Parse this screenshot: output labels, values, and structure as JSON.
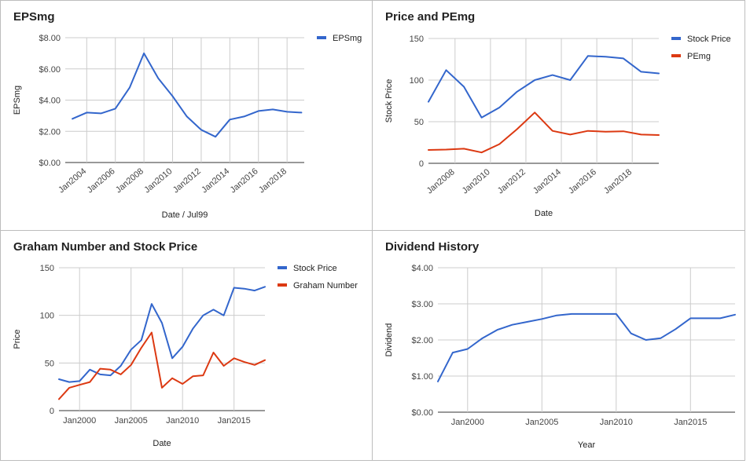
{
  "chart_data": [
    {
      "id": "eps",
      "type": "line",
      "title": "EPSmg",
      "xlabel": "Date / Jul99",
      "ylabel": "EPSmg",
      "xlim": [
        2002.5,
        2019.2
      ],
      "ylim": [
        0,
        8
      ],
      "yticks": [
        0,
        2,
        4,
        6,
        8
      ],
      "ytick_labels": [
        "$0.00",
        "$2.00",
        "$4.00",
        "$6.00",
        "$8.00"
      ],
      "xticks": [
        2004,
        2006,
        2008,
        2010,
        2012,
        2014,
        2016,
        2018
      ],
      "xtick_labels": [
        "Jan2004",
        "Jan2006",
        "Jan2008",
        "Jan2010",
        "Jan2012",
        "Jan2014",
        "Jan2016",
        "Jan2018"
      ],
      "rotate_xticks": true,
      "legend_position": "right",
      "series": [
        {
          "name": "EPSmg",
          "color": "#3366cc",
          "x": [
            2003,
            2004,
            2005,
            2006,
            2007,
            2008,
            2009,
            2010,
            2011,
            2012,
            2013,
            2014,
            2015,
            2016,
            2017,
            2018,
            2019
          ],
          "y": [
            2.8,
            3.2,
            3.15,
            3.45,
            4.8,
            7.0,
            5.4,
            4.25,
            2.95,
            2.1,
            1.65,
            2.75,
            2.95,
            3.3,
            3.4,
            3.25,
            3.2
          ]
        }
      ]
    },
    {
      "id": "price",
      "type": "line",
      "title": "Price and PEmg",
      "xlabel": "Date",
      "ylabel": "Stock Price",
      "xlim": [
        2006.5,
        2019.5
      ],
      "ylim": [
        0,
        150
      ],
      "yticks": [
        0,
        50,
        100,
        150
      ],
      "ytick_labels": [
        "0",
        "50",
        "100",
        "150"
      ],
      "xticks": [
        2008,
        2010,
        2012,
        2014,
        2016,
        2018
      ],
      "xtick_labels": [
        "Jan2008",
        "Jan2010",
        "Jan2012",
        "Jan2014",
        "Jan2016",
        "Jan2018"
      ],
      "rotate_xticks": true,
      "legend_position": "right",
      "series": [
        {
          "name": "Stock Price",
          "color": "#3366cc",
          "x": [
            2006.5,
            2007.5,
            2008.5,
            2009.5,
            2010.5,
            2011.5,
            2012.5,
            2013.5,
            2014.5,
            2015.5,
            2016.5,
            2017.5,
            2018.5,
            2019.5
          ],
          "y": [
            74,
            112,
            92,
            55,
            67,
            86,
            100,
            106,
            100,
            129,
            128,
            126,
            110,
            108
          ]
        },
        {
          "name": "PEmg",
          "color": "#dc3912",
          "x": [
            2006.5,
            2007.5,
            2008.5,
            2009.5,
            2010.5,
            2011.5,
            2012.5,
            2013.5,
            2014.5,
            2015.5,
            2016.5,
            2017.5,
            2018.5,
            2019.5
          ],
          "y": [
            16,
            16.5,
            17.5,
            13,
            23,
            41,
            61,
            39,
            34.5,
            39,
            38,
            38.5,
            34.5,
            34
          ]
        }
      ]
    },
    {
      "id": "graham",
      "type": "line",
      "title": "Graham Number and Stock Price",
      "xlabel": "Date",
      "ylabel": "Price",
      "xlim": [
        1998,
        2018
      ],
      "ylim": [
        0,
        150
      ],
      "yticks": [
        0,
        50,
        100,
        150
      ],
      "ytick_labels": [
        "0",
        "50",
        "100",
        "150"
      ],
      "xticks": [
        2000,
        2005,
        2010,
        2015
      ],
      "xtick_labels": [
        "Jan2000",
        "Jan2005",
        "Jan2010",
        "Jan2015"
      ],
      "rotate_xticks": false,
      "vgrid": true,
      "legend_position": "right",
      "series": [
        {
          "name": "Stock Price",
          "color": "#3366cc",
          "x": [
            1998,
            1999,
            2000,
            2001,
            2002,
            2003,
            2004,
            2005,
            2006,
            2007,
            2008,
            2009,
            2010,
            2011,
            2012,
            2013,
            2014,
            2015,
            2016,
            2017,
            2018
          ],
          "y": [
            33,
            30,
            31,
            43,
            38,
            37,
            47,
            64,
            74,
            112,
            92,
            55,
            67,
            86,
            100,
            106,
            100,
            129,
            128,
            126,
            130
          ]
        },
        {
          "name": "Graham Number",
          "color": "#dc3912",
          "x": [
            1998,
            1999,
            2000,
            2001,
            2002,
            2003,
            2004,
            2005,
            2006,
            2007,
            2008,
            2009,
            2010,
            2011,
            2012,
            2013,
            2014,
            2015,
            2016,
            2017,
            2018
          ],
          "y": [
            12,
            24,
            27,
            30,
            44,
            43,
            38,
            48,
            66,
            82,
            24,
            34,
            28,
            36,
            37,
            61,
            47,
            55,
            51,
            48,
            53
          ]
        }
      ]
    },
    {
      "id": "dividend",
      "type": "line",
      "title": "Dividend History",
      "xlabel": "Year",
      "ylabel": "Dividend",
      "xlim": [
        1998,
        2018
      ],
      "ylim": [
        0,
        4
      ],
      "yticks": [
        0,
        1,
        2,
        3,
        4
      ],
      "ytick_labels": [
        "$0.00",
        "$1.00",
        "$2.00",
        "$3.00",
        "$4.00"
      ],
      "xticks": [
        2000,
        2005,
        2010,
        2015
      ],
      "xtick_labels": [
        "Jan2000",
        "Jan2005",
        "Jan2010",
        "Jan2015"
      ],
      "rotate_xticks": false,
      "vgrid": true,
      "legend_position": "none",
      "series": [
        {
          "name": "",
          "color": "#3366cc",
          "x": [
            1998,
            1999,
            2000,
            2001,
            2002,
            2003,
            2004,
            2005,
            2006,
            2007,
            2008,
            2009,
            2010,
            2011,
            2012,
            2013,
            2014,
            2015,
            2016,
            2017,
            2018
          ],
          "y": [
            0.85,
            1.65,
            1.75,
            2.05,
            2.28,
            2.42,
            2.5,
            2.58,
            2.68,
            2.72,
            2.72,
            2.72,
            2.72,
            2.18,
            2.0,
            2.05,
            2.3,
            2.6,
            2.6,
            2.6,
            2.7
          ]
        }
      ]
    }
  ]
}
